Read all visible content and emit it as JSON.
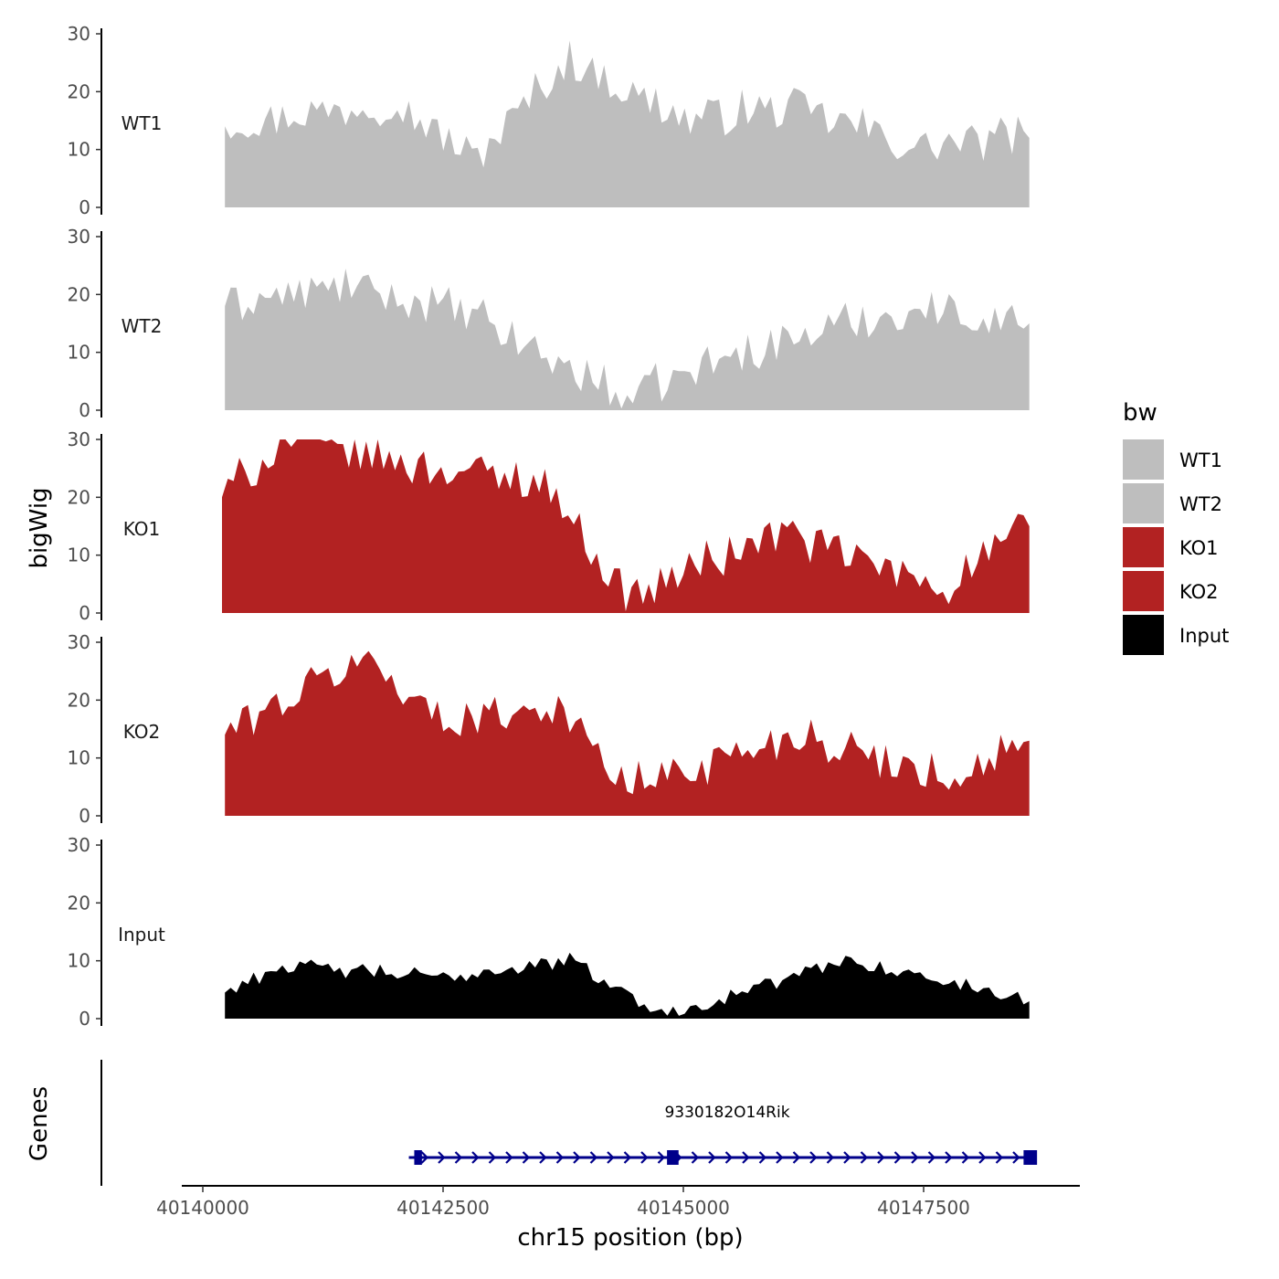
{
  "chart_data": {
    "type": "area",
    "ylabel": "bigWig",
    "xlabel": "chr15 position (bp)",
    "ylim": [
      0,
      30
    ],
    "y_ticks": [
      0,
      10,
      20,
      30
    ],
    "x_range": [
      40139700,
      40149150
    ],
    "x_ticks": [
      {
        "value": 40140000,
        "label": "40140000"
      },
      {
        "value": 40142500,
        "label": "40142500"
      },
      {
        "value": 40145000,
        "label": "40145000"
      },
      {
        "value": 40147500,
        "label": "40147500"
      }
    ],
    "legend": {
      "title": "bw",
      "position": "right",
      "entries": [
        {
          "label": "WT1",
          "color": "#bebebe"
        },
        {
          "label": "WT2",
          "color": "#bebebe"
        },
        {
          "label": "KO1",
          "color": "#b22222"
        },
        {
          "label": "KO2",
          "color": "#b22222"
        },
        {
          "label": "Input",
          "color": "#000000"
        }
      ]
    },
    "series": [
      {
        "name": "WT1",
        "color": "#bebebe",
        "x": [
          40140230,
          40142000,
          40142800,
          40143800,
          40145000,
          40146200,
          40147400,
          40148600
        ],
        "values": [
          14,
          18,
          8,
          25,
          15,
          17,
          10,
          12
        ]
      },
      {
        "name": "WT2",
        "color": "#bebebe",
        "x": [
          40140230,
          40141500,
          40142800,
          40144400,
          40145800,
          40147400,
          40148600
        ],
        "values": [
          18,
          21,
          16,
          1.5,
          11,
          17,
          15
        ]
      },
      {
        "name": "KO1",
        "color": "#b22222",
        "x": [
          40140200,
          40140900,
          40142000,
          40143600,
          40144400,
          40146000,
          40147700,
          40148600
        ],
        "values": [
          20,
          30,
          26,
          22,
          2,
          14,
          4,
          15
        ]
      },
      {
        "name": "KO2",
        "color": "#b22222",
        "x": [
          40140230,
          40141700,
          40142500,
          40143700,
          40144400,
          40146200,
          40147800,
          40148600
        ],
        "values": [
          14,
          27,
          16,
          19,
          4.5,
          14,
          6,
          13
        ]
      },
      {
        "name": "Input",
        "color": "#000000",
        "x": [
          40140230,
          40140800,
          40142500,
          40143800,
          40144800,
          40146700,
          40148600
        ],
        "values": [
          4.5,
          9,
          7,
          10,
          0.5,
          10,
          3
        ]
      }
    ],
    "genes": {
      "panel_label": "Genes",
      "name": "9330182O14Rik",
      "color": "#00008b",
      "start": 40142220,
      "end": 40148650,
      "strand": "+",
      "exons": [
        {
          "start": 40142200,
          "end": 40142280
        },
        {
          "start": 40144830,
          "end": 40144950
        },
        {
          "start": 40148540,
          "end": 40148680
        }
      ]
    }
  }
}
